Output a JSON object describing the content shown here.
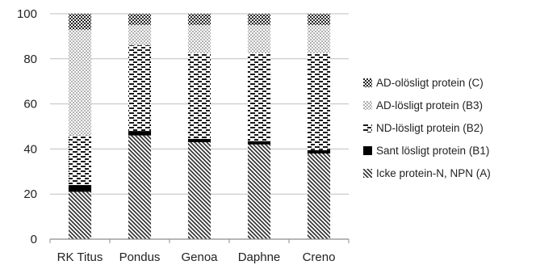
{
  "chart_data": {
    "type": "bar",
    "stacked": true,
    "categories": [
      "RK Titus",
      "Pondus",
      "Genoa",
      "Daphne",
      "Creno"
    ],
    "series": [
      {
        "name": "Icke protein-N, NPN (A)",
        "pattern": "diagonal-hatch",
        "color": "#333333",
        "values": [
          21,
          46,
          43,
          42,
          38
        ]
      },
      {
        "name": "Sant lösligt protein (B1)",
        "pattern": "solid",
        "color": "#000000",
        "values": [
          3,
          2,
          1.5,
          1.5,
          1.5
        ]
      },
      {
        "name": "ND-lösligt protein (B2)",
        "pattern": "dashes",
        "color": "#222222",
        "values": [
          22,
          38,
          38,
          39,
          43
        ]
      },
      {
        "name": "AD-lösligt protein (B3)",
        "pattern": "dots",
        "color": "#444444",
        "values": [
          47,
          9,
          12.5,
          12.5,
          12.5
        ]
      },
      {
        "name": "AD-olösligt protein (C)",
        "pattern": "checker",
        "color": "#333333",
        "values": [
          7,
          5,
          5,
          5,
          5
        ]
      }
    ],
    "ylim": [
      0,
      100
    ],
    "yticks": [
      "0",
      "20",
      "40",
      "60",
      "80",
      "100"
    ],
    "grid": true,
    "legend_position": "right",
    "title": "",
    "xlabel": "",
    "ylabel": ""
  },
  "legend": {
    "items": [
      {
        "label": "AD-olösligt protein (C)",
        "pattern": "checker"
      },
      {
        "label": "AD-lösligt protein (B3)",
        "pattern": "dots"
      },
      {
        "label": "ND-lösligt protein (B2)",
        "pattern": "dashes"
      },
      {
        "label": "Sant lösligt protein (B1)",
        "pattern": "solid"
      },
      {
        "label": "Icke protein-N, NPN (A)",
        "pattern": "diagonal-hatch"
      }
    ]
  },
  "colors": {
    "gridline": "#bfbfbf",
    "axis": "#8c8c8c",
    "text": "#222222"
  }
}
